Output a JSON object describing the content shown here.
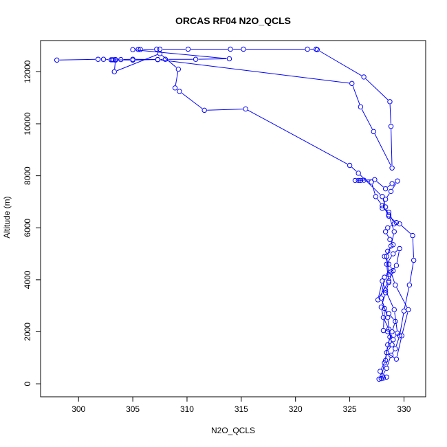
{
  "chart_data": {
    "type": "line",
    "title": "ORCAS RF04 N2O_QCLS",
    "xlabel": "N2O_QCLS",
    "ylabel": "Altitude (m)",
    "xlim": [
      296.5,
      332
    ],
    "ylim": [
      -500,
      13200
    ],
    "xticks": [
      300,
      305,
      310,
      315,
      320,
      325,
      330
    ],
    "yticks": [
      0,
      2000,
      4000,
      6000,
      8000,
      10000,
      12000
    ],
    "grid": false,
    "legend": "none",
    "color": "#0000ff",
    "marker": "open-circle",
    "series": [
      {
        "x": [
          298.0,
          301.8,
          302.3,
          303.0,
          303.2,
          303.4,
          303.9,
          305.0,
          307.3,
          308.0,
          310.8,
          313.9,
          305.0,
          305.5,
          305.7,
          307.2,
          307.5,
          310.1,
          314.0,
          315.2,
          321.1,
          321.9,
          322.0,
          326.3,
          328.7,
          328.8,
          328.9,
          327.2,
          326.0,
          325.2,
          307.3,
          305.0,
          303.1,
          303.4,
          303.3,
          307.5,
          309.2,
          308.9,
          309.3,
          311.6,
          315.4,
          325.0,
          325.8,
          328.0,
          328.3,
          328.6,
          329.3,
          329.6,
          330.8,
          330.9,
          330.5,
          330.0,
          329.6,
          329.2,
          328.8,
          328.4,
          328.0,
          327.8,
          328.3,
          328.5,
          328.9,
          329.2,
          328.6,
          328.2,
          328.1,
          328.5,
          329.0,
          329.4,
          329.1,
          328.3,
          328.0,
          327.6,
          328.6,
          329.0,
          328.6,
          328.2,
          328.5,
          329.0,
          328.7,
          328.3,
          328.5,
          329.1,
          328.6,
          328.0,
          328.3,
          328.8,
          329.4,
          328.9,
          328.3,
          327.3,
          325.5,
          325.8,
          326.0,
          326.3,
          327.0,
          327.4,
          328.0,
          328.6,
          329.1,
          328.8,
          328.4,
          328.6,
          329.3,
          329.6,
          329.0,
          328.4,
          328.6,
          328.3,
          327.9,
          328.1,
          328.6,
          328.9,
          328.4,
          329.3,
          329.8,
          330.4,
          329.2,
          328.8,
          328.2,
          327.9,
          328.5,
          328.7,
          328.2,
          327.9,
          327.7,
          328.1,
          328.4
        ],
        "y": [
          12450,
          12480,
          12480,
          12460,
          12460,
          12470,
          12470,
          12480,
          12470,
          12480,
          12480,
          12500,
          12850,
          12860,
          12860,
          12870,
          12870,
          12870,
          12870,
          12870,
          12870,
          12870,
          12850,
          11800,
          10850,
          9900,
          8300,
          9700,
          10650,
          11550,
          12470,
          12450,
          12460,
          12450,
          12000,
          12700,
          12100,
          11380,
          11250,
          10520,
          10570,
          8400,
          8100,
          7200,
          6800,
          6450,
          6200,
          6150,
          5700,
          4750,
          3800,
          2800,
          1850,
          1350,
          1100,
          600,
          300,
          480,
          900,
          1500,
          2000,
          2400,
          2700,
          2900,
          2050,
          2000,
          1700,
          1950,
          2850,
          3600,
          3950,
          3230,
          3950,
          4350,
          4600,
          4900,
          5100,
          5350,
          5550,
          5850,
          6000,
          6150,
          6600,
          6750,
          7100,
          7400,
          7800,
          7700,
          7500,
          7850,
          7820,
          7820,
          7820,
          7830,
          7760,
          7200,
          6850,
          6500,
          5850,
          5300,
          4900,
          4200,
          4550,
          5200,
          5000,
          4600,
          3900,
          3500,
          2950,
          2550,
          2100,
          1500,
          1200,
          950,
          1850,
          2850,
          3800,
          4300,
          4100,
          3300,
          2550,
          1800,
          800,
          200,
          180,
          220,
          260
        ]
      }
    ]
  }
}
